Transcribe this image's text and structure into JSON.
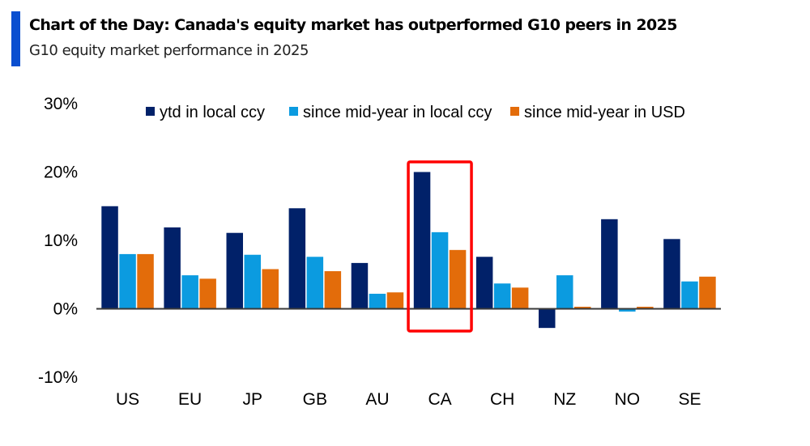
{
  "header": {
    "title": "Chart of the Day: Canada's equity market has outperformed G10 peers in 2025",
    "subtitle": "G10 equity market performance in 2025",
    "accent_color": "#0a4fd0"
  },
  "chart_data": {
    "type": "bar",
    "title": "Chart of the Day: Canada's equity market has outperformed G10 peers in 2025",
    "subtitle": "G10 equity market performance in 2025",
    "xlabel": "",
    "ylabel": "",
    "categories": [
      "US",
      "EU",
      "JP",
      "GB",
      "AU",
      "CA",
      "CH",
      "NZ",
      "NO",
      "SE"
    ],
    "series": [
      {
        "name": "ytd in local ccy",
        "color": "#012169",
        "values": [
          15.0,
          11.9,
          11.1,
          14.7,
          6.7,
          20.0,
          7.6,
          -2.8,
          13.1,
          10.2
        ]
      },
      {
        "name": "since mid-year in local ccy",
        "color": "#0b9be0",
        "values": [
          8.0,
          4.9,
          7.9,
          7.6,
          2.2,
          11.2,
          3.7,
          4.9,
          -0.4,
          4.0
        ]
      },
      {
        "name": "since mid-year in USD",
        "color": "#e36c0a",
        "values": [
          8.0,
          4.4,
          5.8,
          5.5,
          2.4,
          8.6,
          3.1,
          0.3,
          0.3,
          4.7
        ]
      }
    ],
    "ylim": [
      -10,
      30
    ],
    "yticks": [
      30,
      20,
      10,
      0,
      -10
    ],
    "ytick_labels": [
      "30%",
      "20%",
      "10%",
      "0%",
      "-10%"
    ],
    "grid": false,
    "legend_position": "top",
    "highlight": {
      "category": "CA",
      "color": "#ff0000"
    }
  }
}
